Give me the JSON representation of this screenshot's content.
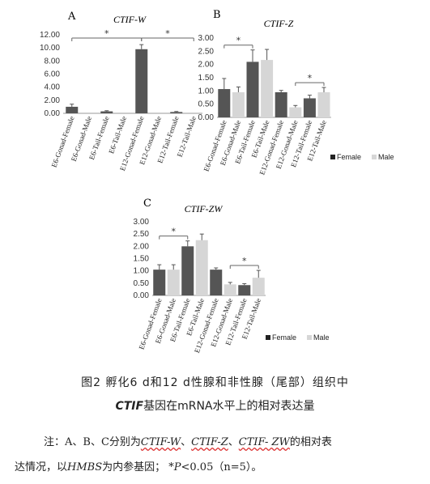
{
  "chart_data": [
    {
      "type": "bar",
      "panel_label": "A",
      "title": "CTIF-W",
      "categories": [
        "E6-Gonad-Female",
        "E6-Gonad-Male",
        "E6-Tail-Female",
        "E6-Tail-Male",
        "E12-Gonad-Female",
        "E12-Gonad-Male",
        "E12-Tail-Female",
        "E12-Tail-Male"
      ],
      "values": [
        1.0,
        0.0,
        0.3,
        0.0,
        9.8,
        0.0,
        0.2,
        0.0
      ],
      "errors": [
        0.4,
        0.0,
        0.1,
        0.0,
        0.7,
        0.0,
        0.08,
        0.0
      ],
      "ylim": [
        0,
        12
      ],
      "yticks": [
        "0.00",
        "2.00",
        "4.00",
        "6.00",
        "8.00",
        "10.00",
        "12.00"
      ],
      "significance": [
        {
          "from": 0,
          "to": 4,
          "label": "*"
        },
        {
          "from": 4,
          "to": 7,
          "label": "*"
        }
      ]
    },
    {
      "type": "bar",
      "panel_label": "B",
      "title": "CTIF-Z",
      "categories": [
        "E6-Gonad-Female",
        "E6-Gonad-Male",
        "E6-Tail-Female",
        "E6-Tail-Male",
        "E12-Gonad-Female",
        "E12-Gonad-Male",
        "E12-Tail-Female",
        "E12-Tail-Male"
      ],
      "values": [
        1.07,
        0.95,
        2.1,
        2.17,
        0.95,
        0.38,
        0.72,
        0.95
      ],
      "errors": [
        0.4,
        0.2,
        0.45,
        0.4,
        0.07,
        0.07,
        0.12,
        0.18
      ],
      "series_colors": [
        "#555555",
        "#d6d6d6",
        "#555555",
        "#d6d6d6",
        "#555555",
        "#d6d6d6",
        "#555555",
        "#d6d6d6"
      ],
      "ylim": [
        0,
        3
      ],
      "yticks": [
        "0.00",
        "0.50",
        "1.00",
        "1.50",
        "2.00",
        "2.50",
        "3.00"
      ],
      "legend": [
        "Female",
        "Male"
      ],
      "significance": [
        {
          "from": 0,
          "to": 2,
          "label": "*"
        },
        {
          "from": 5,
          "to": 7,
          "label": "*"
        }
      ]
    },
    {
      "type": "bar",
      "panel_label": "C",
      "title": "CTIF-ZW",
      "categories": [
        "E6-Gonad-Female",
        "E6-Gonad-Male",
        "E6-Tail-Female",
        "E6-Tail-Male",
        "E12-Gonad-Female",
        "E12-Gonad-Male",
        "E12-Tail-Female",
        "E12-Tail-Male"
      ],
      "values": [
        1.05,
        1.05,
        2.0,
        2.25,
        1.05,
        0.45,
        0.42,
        0.72
      ],
      "errors": [
        0.2,
        0.2,
        0.22,
        0.25,
        0.07,
        0.08,
        0.06,
        0.3
      ],
      "series_colors": [
        "#555555",
        "#d6d6d6",
        "#555555",
        "#d6d6d6",
        "#555555",
        "#d6d6d6",
        "#555555",
        "#d6d6d6"
      ],
      "ylim": [
        0,
        3
      ],
      "yticks": [
        "0.00",
        "0.50",
        "1.00",
        "1.50",
        "2.00",
        "2.50",
        "3.00"
      ],
      "legend": [
        "Female",
        "Male"
      ],
      "significance": [
        {
          "from": 0,
          "to": 2,
          "label": "*"
        },
        {
          "from": 5,
          "to": 7,
          "label": "*"
        }
      ]
    }
  ],
  "caption": {
    "line1": "图2   孵化6 d和12 d性腺和非性腺（尾部）组织中",
    "line2_italic": "CTIF",
    "line2_rest": "基因在mRNA水平上的相对表达量"
  },
  "note": {
    "prefix": "注：A、B、C分别为",
    "gene1": "CTIF-W",
    "sep1": "、",
    "gene2": "CTIF-Z",
    "sep2": "、",
    "gene3": "CTIF- ZW",
    "mid": "的相对表",
    "line2_a": "达情况，以",
    "hmbs": "HMBS",
    "line2_b": "为内参基因；  *",
    "p": "P",
    "line2_c": "<0.05（n=5）。"
  }
}
